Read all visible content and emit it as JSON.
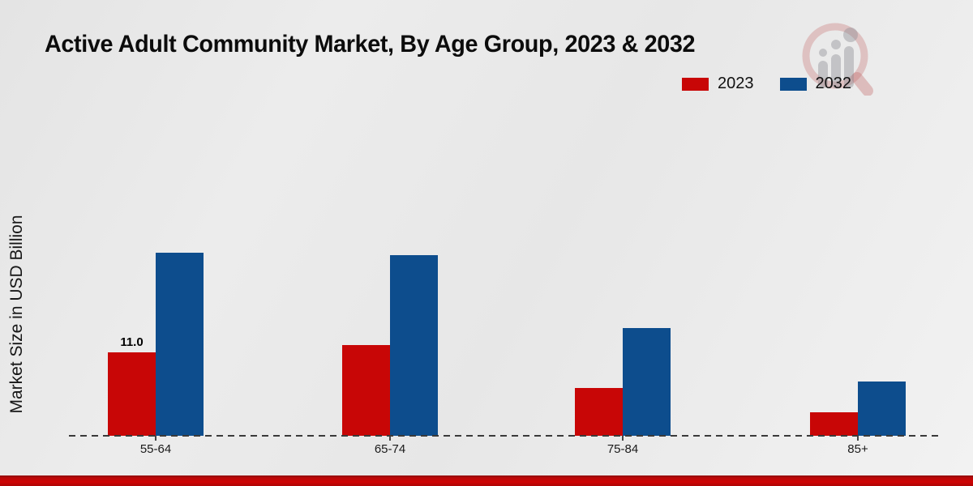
{
  "header": {
    "title": "Active Adult Community Market, By Age Group, 2023 & 2032"
  },
  "legend": {
    "items": [
      {
        "label": "2023",
        "color": "#c80606"
      },
      {
        "label": "2032",
        "color": "#0d4d8d"
      }
    ]
  },
  "y_axis": {
    "label": "Market Size in USD Billion"
  },
  "chart_data": {
    "type": "bar",
    "title": "Active Adult Community Market, By Age Group, 2023 & 2032",
    "categories": [
      "55-64",
      "65-74",
      "75-84",
      "85+"
    ],
    "series": [
      {
        "name": "2023",
        "color": "#c80606",
        "values": [
          11.0,
          12.0,
          6.3,
          3.1
        ]
      },
      {
        "name": "2032",
        "color": "#0d4d8d",
        "values": [
          24.1,
          23.8,
          14.2,
          7.2
        ]
      }
    ],
    "xlabel": "",
    "ylabel": "Market Size in USD Billion",
    "ylim": [
      0,
      26
    ],
    "grid": false,
    "baseline_style": "dashed",
    "y_ticks_visible": false,
    "legend_position": "top-right",
    "annotations": [
      {
        "series": "2023",
        "category": "55-64",
        "text": "11.0"
      }
    ]
  },
  "branding": {
    "watermark_icon": "growth-chart-magnifier-logo",
    "footer_color": "#cf0404"
  }
}
